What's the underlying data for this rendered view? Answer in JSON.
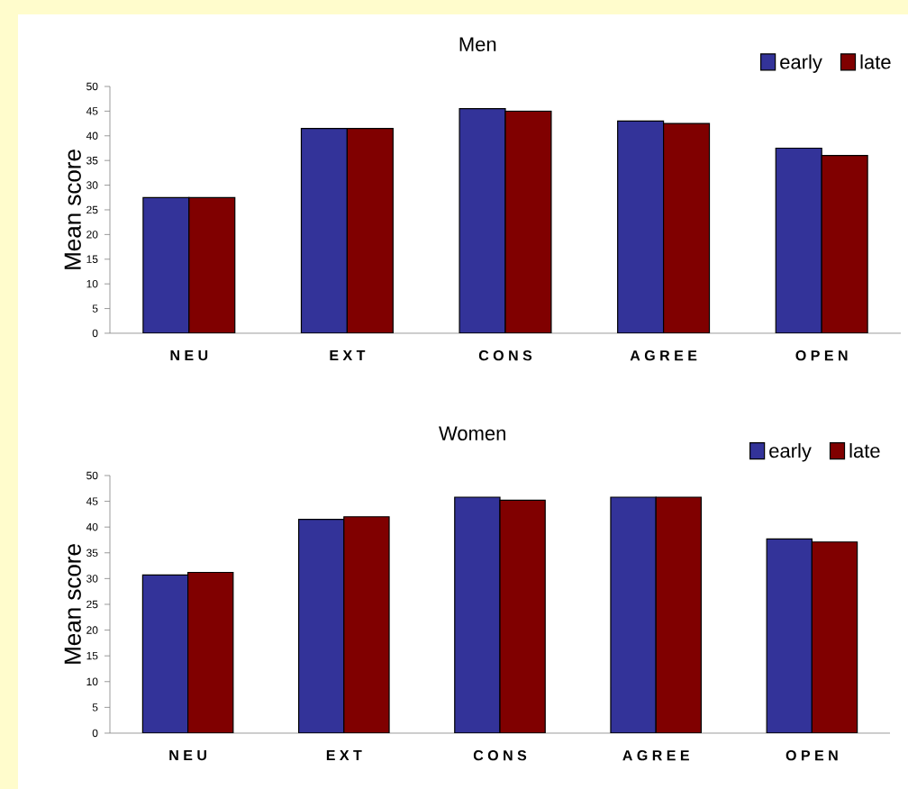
{
  "chart_data": [
    {
      "type": "bar",
      "title": "Men",
      "ylabel": "Mean score",
      "categories": [
        "N E U",
        "E X T",
        "C O N S",
        "A G R E E",
        "O P E N"
      ],
      "ylim": [
        0,
        50
      ],
      "yticks": [
        0,
        5,
        10,
        15,
        20,
        25,
        30,
        35,
        40,
        45,
        50
      ],
      "legend": "top right",
      "grid": false,
      "series": [
        {
          "name": "early",
          "color": "#333399",
          "values": [
            27.5,
            41.5,
            45.5,
            43,
            37.5
          ]
        },
        {
          "name": "late",
          "color": "#800000",
          "values": [
            27.5,
            41.5,
            45,
            42.5,
            36
          ]
        }
      ]
    },
    {
      "type": "bar",
      "title": "Women",
      "ylabel": "Mean score",
      "categories": [
        "N E U",
        "E X T",
        "C O N S",
        "A G R E E",
        "O P E N"
      ],
      "ylim": [
        0,
        50
      ],
      "yticks": [
        0,
        5,
        10,
        15,
        20,
        25,
        30,
        35,
        40,
        45,
        50
      ],
      "legend": "top right",
      "grid": false,
      "series": [
        {
          "name": "early",
          "color": "#333399",
          "values": [
            30.7,
            41.5,
            45.8,
            45.8,
            37.7
          ]
        },
        {
          "name": "late",
          "color": "#800000",
          "values": [
            31.2,
            42,
            45.2,
            45.8,
            37.1
          ]
        }
      ]
    }
  ]
}
